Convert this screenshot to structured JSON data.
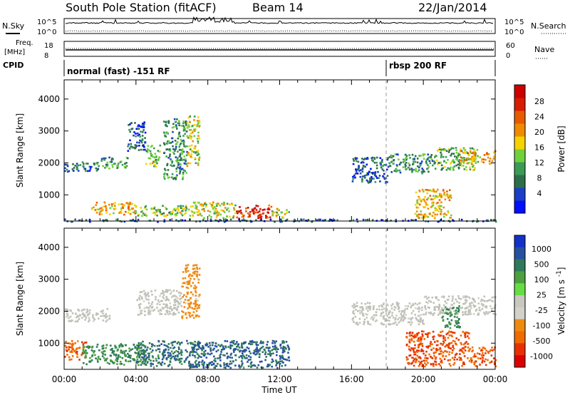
{
  "header": {
    "title": "South Pole Station (fitACF)",
    "beam": "Beam 14",
    "date": "22/Jan/2014"
  },
  "summary_panels": {
    "nsky_label": "N.Sky",
    "nsky_ticks": [
      "10^5",
      "10^0"
    ],
    "nsearch_label": "N.Search",
    "nsearch_ticks": [
      "10^5",
      "10^0"
    ],
    "freq_label_line1": "Freq.",
    "freq_label_line2": "[MHz]",
    "freq_ticks": [
      "18",
      "8"
    ],
    "nave_label": "Nave",
    "nave_ticks": [
      "60",
      "0"
    ],
    "cpid_label": "CPID",
    "cpid_modes": [
      {
        "text": "normal (fast) -151 RF",
        "start_hour": 0
      },
      {
        "text": "rbsp 200 RF",
        "start_hour": 18
      }
    ]
  },
  "colors": {
    "power_scale": [
      "#0010ff",
      "#1a3fc8",
      "#2d6e4a",
      "#3a9a56",
      "#6fd13b",
      "#f5d200",
      "#f08a00",
      "#e85a00",
      "#d81c00",
      "#cc0000"
    ],
    "velocity_scale": [
      "#1432c8",
      "#2850a0",
      "#2e7a5a",
      "#4ca040",
      "#66dd44",
      "#c8c8c0",
      "#d2d2ca",
      "#ee8a10",
      "#f06a00",
      "#e83000",
      "#dd0000"
    ],
    "ground_scatter": "#c0c0b8"
  },
  "chart_data": [
    {
      "type": "heatmap",
      "panel": "power",
      "ylabel": "Slant Range [km]",
      "ylim": [
        180,
        4600
      ],
      "yticks": [
        "1000",
        "2000",
        "3000",
        "4000"
      ],
      "xlim": [
        0,
        24
      ],
      "colorbar_title": "Power [dB]",
      "colorbar_labels": [
        "28",
        "24",
        "20",
        "16",
        "12",
        "8",
        "4"
      ],
      "regions": [
        {
          "x": [
            0.0,
            2.0
          ],
          "y": [
            1750,
            2050
          ],
          "value": 8
        },
        {
          "x": [
            2.0,
            3.5
          ],
          "y": [
            1850,
            2200
          ],
          "value": 10
        },
        {
          "x": [
            3.5,
            4.5
          ],
          "y": [
            2400,
            3300
          ],
          "value": 6
        },
        {
          "x": [
            4.5,
            5.3
          ],
          "y": [
            1900,
            2600
          ],
          "value": 14
        },
        {
          "x": [
            5.5,
            6.8
          ],
          "y": [
            1500,
            3400
          ],
          "value": 10
        },
        {
          "x": [
            6.8,
            7.5
          ],
          "y": [
            1900,
            3500
          ],
          "value": 16
        },
        {
          "x": [
            1.5,
            4.0
          ],
          "y": [
            400,
            800
          ],
          "value": 18
        },
        {
          "x": [
            4.0,
            7.0
          ],
          "y": [
            350,
            700
          ],
          "value": 14
        },
        {
          "x": [
            7.0,
            9.5
          ],
          "y": [
            300,
            800
          ],
          "value": 16
        },
        {
          "x": [
            9.5,
            11.5
          ],
          "y": [
            280,
            700
          ],
          "value": 26
        },
        {
          "x": [
            11.5,
            12.5
          ],
          "y": [
            300,
            600
          ],
          "value": 16
        },
        {
          "x": [
            16.0,
            18.0
          ],
          "y": [
            1400,
            2200
          ],
          "value": 6
        },
        {
          "x": [
            18.0,
            20.5
          ],
          "y": [
            1700,
            2300
          ],
          "value": 10
        },
        {
          "x": [
            20.5,
            23.0
          ],
          "y": [
            1800,
            2500
          ],
          "value": 12
        },
        {
          "x": [
            22.0,
            24.0
          ],
          "y": [
            2000,
            2400
          ],
          "value": 20
        },
        {
          "x": [
            19.5,
            21.5
          ],
          "y": [
            300,
            1200
          ],
          "value": 18
        },
        {
          "x": [
            0.0,
            24.0
          ],
          "y": [
            180,
            260
          ],
          "value": 6
        }
      ]
    },
    {
      "type": "heatmap",
      "panel": "velocity",
      "ylabel": "Slant Range [km]",
      "xlabel": "Time UT",
      "ylim": [
        180,
        4600
      ],
      "yticks": [
        "1000",
        "2000",
        "3000",
        "4000"
      ],
      "xlim": [
        0,
        24
      ],
      "xticks": [
        "00:00",
        "04:00",
        "08:00",
        "12:00",
        "16:00",
        "20:00",
        "00:00"
      ],
      "colorbar_title": "Velocity [m s^-1]",
      "colorbar_labels": [
        "1000",
        "500",
        "100",
        "25",
        "-25",
        "-100",
        "-500",
        "-1000"
      ],
      "regions": [
        {
          "x": [
            0.0,
            2.5
          ],
          "y": [
            1700,
            2100
          ],
          "value": 0
        },
        {
          "x": [
            4.0,
            6.5
          ],
          "y": [
            1900,
            2700
          ],
          "value": 0
        },
        {
          "x": [
            6.5,
            7.5
          ],
          "y": [
            1800,
            3500
          ],
          "value": -100
        },
        {
          "x": [
            0.0,
            1.2
          ],
          "y": [
            500,
            1100
          ],
          "value": -300
        },
        {
          "x": [
            1.0,
            4.5
          ],
          "y": [
            350,
            1000
          ],
          "value": 200
        },
        {
          "x": [
            4.0,
            7.5
          ],
          "y": [
            300,
            1100
          ],
          "value": 300
        },
        {
          "x": [
            7.0,
            12.5
          ],
          "y": [
            250,
            1100
          ],
          "value": 400
        },
        {
          "x": [
            16.0,
            20.0
          ],
          "y": [
            1600,
            2300
          ],
          "value": 0
        },
        {
          "x": [
            20.0,
            24.0
          ],
          "y": [
            1900,
            2500
          ],
          "value": 0
        },
        {
          "x": [
            19.0,
            22.5
          ],
          "y": [
            300,
            1400
          ],
          "value": -400
        },
        {
          "x": [
            22.5,
            24.0
          ],
          "y": [
            300,
            900
          ],
          "value": -300
        },
        {
          "x": [
            21.0,
            22.0
          ],
          "y": [
            1500,
            2200
          ],
          "value": 200
        }
      ]
    }
  ]
}
